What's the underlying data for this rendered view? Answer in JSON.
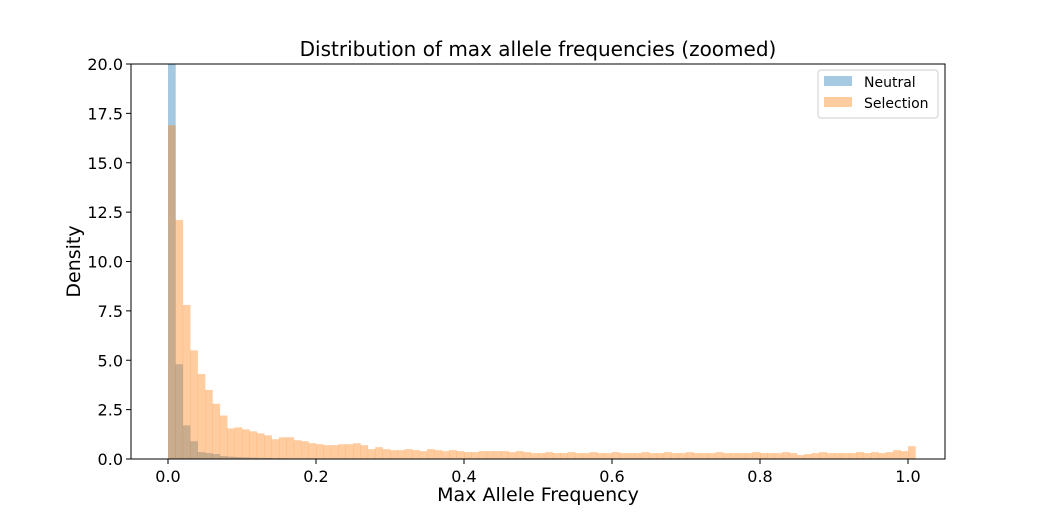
{
  "chart_data": {
    "type": "bar",
    "title": "Distribution of max allele frequencies (zoomed)",
    "xlabel": "Max Allele Frequency",
    "ylabel": "Density",
    "xlim": [
      -0.05,
      1.05
    ],
    "ylim": [
      0,
      20
    ],
    "xticks": [
      "0.0",
      "0.2",
      "0.4",
      "0.6",
      "0.8",
      "1.0"
    ],
    "yticks": [
      "0.0",
      "2.5",
      "5.0",
      "7.5",
      "10.0",
      "12.5",
      "15.0",
      "17.5",
      "20.0"
    ],
    "bin_start": 0.0,
    "bin_width": 0.01,
    "grid": false,
    "legend_position": "top-right",
    "series": [
      {
        "name": "Neutral",
        "color": "#1f77b4",
        "opacity": 0.4,
        "values": [
          20.0,
          4.8,
          1.7,
          0.9,
          0.35,
          0.3,
          0.25,
          0.15,
          0.12,
          0.1,
          0.08,
          0.07,
          0.06,
          0.05,
          0.04,
          0.04,
          0.03,
          0.03,
          0.03,
          0.02,
          0.02,
          0.02
        ]
      },
      {
        "name": "Selection",
        "color": "#ff7f0e",
        "opacity": 0.4,
        "values": [
          16.9,
          12.1,
          7.8,
          5.5,
          4.3,
          3.5,
          2.8,
          2.2,
          1.55,
          1.6,
          1.5,
          1.4,
          1.3,
          1.2,
          1.0,
          1.1,
          1.1,
          0.95,
          0.9,
          0.8,
          0.75,
          0.7,
          0.7,
          0.75,
          0.75,
          0.8,
          0.7,
          0.5,
          0.6,
          0.5,
          0.45,
          0.45,
          0.5,
          0.45,
          0.4,
          0.5,
          0.45,
          0.4,
          0.45,
          0.4,
          0.35,
          0.35,
          0.4,
          0.4,
          0.4,
          0.4,
          0.35,
          0.4,
          0.35,
          0.3,
          0.3,
          0.35,
          0.3,
          0.3,
          0.35,
          0.3,
          0.3,
          0.35,
          0.3,
          0.3,
          0.35,
          0.3,
          0.3,
          0.3,
          0.35,
          0.3,
          0.3,
          0.35,
          0.3,
          0.3,
          0.35,
          0.3,
          0.3,
          0.3,
          0.35,
          0.3,
          0.3,
          0.3,
          0.3,
          0.35,
          0.3,
          0.3,
          0.3,
          0.35,
          0.3,
          0.2,
          0.25,
          0.3,
          0.35,
          0.3,
          0.3,
          0.3,
          0.3,
          0.35,
          0.3,
          0.35,
          0.3,
          0.35,
          0.45,
          0.4,
          0.65
        ]
      }
    ]
  }
}
